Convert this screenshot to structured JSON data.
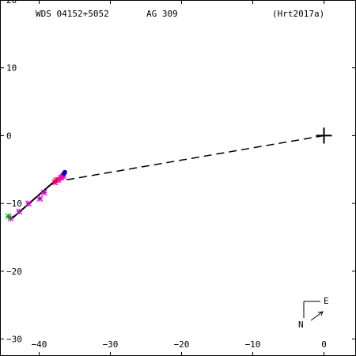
{
  "header": {
    "wds": "WDS 04152+5052",
    "pair": "AG  309",
    "ref": "(Hrt2017a)"
  },
  "compass": {
    "north": "N",
    "east": "E"
  },
  "chart_data": {
    "type": "scatter",
    "title": "",
    "xlim": [
      -45.5,
      4.5
    ],
    "ylim": [
      -32.5,
      20
    ],
    "x_ticks": [
      -40,
      -30,
      -20,
      -10,
      0
    ],
    "x_tick_labels": [
      "−40",
      "−30",
      "−20",
      "−10",
      "0"
    ],
    "y_ticks": [
      20,
      10,
      0,
      -10,
      -20,
      -30
    ],
    "y_tick_labels": [
      "20",
      "10",
      "0",
      "−10",
      "−20",
      "−30"
    ],
    "grid": false,
    "primary": {
      "x": 0,
      "y": 0
    },
    "connector": {
      "from": [
        0,
        0
      ],
      "to": [
        -36.6,
        -6.6
      ],
      "style": "dashed"
    },
    "orbit_line": {
      "points": [
        [
          -43.8,
          -12.2
        ],
        [
          -36.4,
          -5.4
        ]
      ]
    },
    "series": [
      {
        "marker": "asterisk",
        "color": "#cc00cc",
        "points": [
          [
            -44,
            -12.2
          ],
          [
            -42.8,
            -11.2
          ],
          [
            -41.5,
            -10
          ],
          [
            -39.9,
            -9.3
          ],
          [
            -39.3,
            -8.4
          ],
          [
            -37.8,
            -6.9
          ],
          [
            -37.3,
            -6.5
          ],
          [
            -36.9,
            -6.2
          ],
          [
            -36.6,
            -6
          ]
        ]
      },
      {
        "marker": "asterisk",
        "color": "#00aa00",
        "points": [
          [
            -44.3,
            -11.9
          ]
        ]
      },
      {
        "marker": "asterisk",
        "color": "#ff0000",
        "points": [
          [
            -37.6,
            -6.6
          ]
        ]
      },
      {
        "marker": "dot",
        "color": "#ff00aa",
        "points": [
          [
            -36.9,
            -6.1
          ],
          [
            -37,
            -6.3
          ],
          [
            -36.7,
            -5.8
          ],
          [
            -37.2,
            -6.4
          ],
          [
            -36.8,
            -6
          ]
        ]
      },
      {
        "marker": "dot",
        "color": "#0000cc",
        "points": [
          [
            -36.4,
            -5.4
          ],
          [
            -36.5,
            -5.6
          ]
        ]
      }
    ]
  }
}
